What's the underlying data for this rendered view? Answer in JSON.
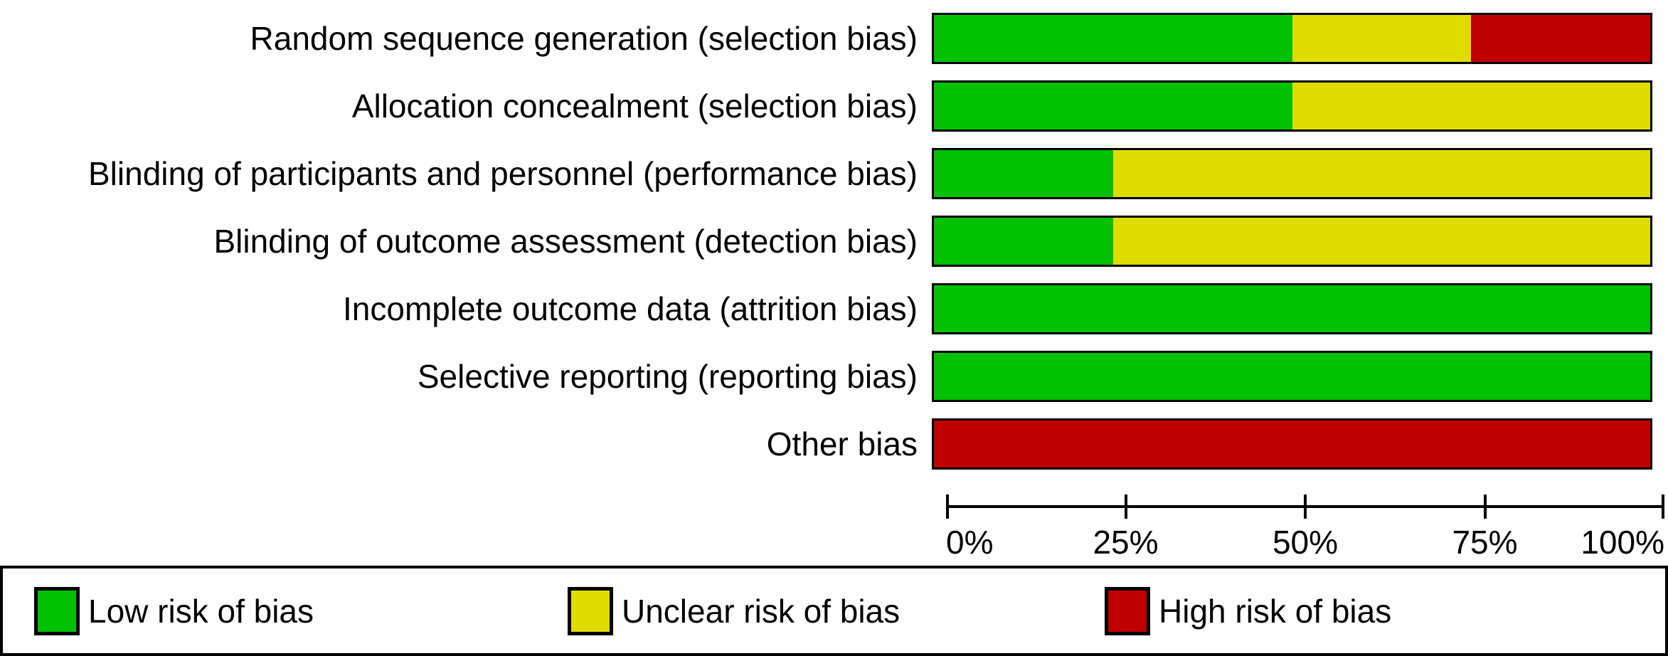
{
  "chart_data": {
    "type": "bar",
    "stacked": true,
    "orientation": "horizontal",
    "categories": [
      "Random sequence generation (selection bias)",
      "Allocation concealment (selection bias)",
      "Blinding of participants and personnel (performance bias)",
      "Blinding of outcome assessment (detection bias)",
      "Incomplete outcome data (attrition bias)",
      "Selective reporting (reporting bias)",
      "Other bias"
    ],
    "series": [
      {
        "name": "Low risk of bias",
        "color": "#02c002",
        "values": [
          50,
          50,
          25,
          25,
          100,
          100,
          0
        ]
      },
      {
        "name": "Unclear risk of bias",
        "color": "#dfdd00",
        "values": [
          25,
          50,
          75,
          75,
          0,
          0,
          0
        ]
      },
      {
        "name": "High risk of bias",
        "color": "#c00000",
        "values": [
          25,
          0,
          0,
          0,
          0,
          0,
          100
        ]
      }
    ],
    "xlim": [
      0,
      100
    ],
    "xticks": [
      "0%",
      "25%",
      "50%",
      "75%",
      "100%"
    ],
    "xtick_positions": [
      0,
      25,
      50,
      75,
      100
    ],
    "grid": false,
    "legend_position": "bottom",
    "colors": {
      "low": "#02c002",
      "unclear": "#dfdd00",
      "high": "#c00000",
      "axis": "#000000",
      "background": "#ffffff"
    }
  }
}
